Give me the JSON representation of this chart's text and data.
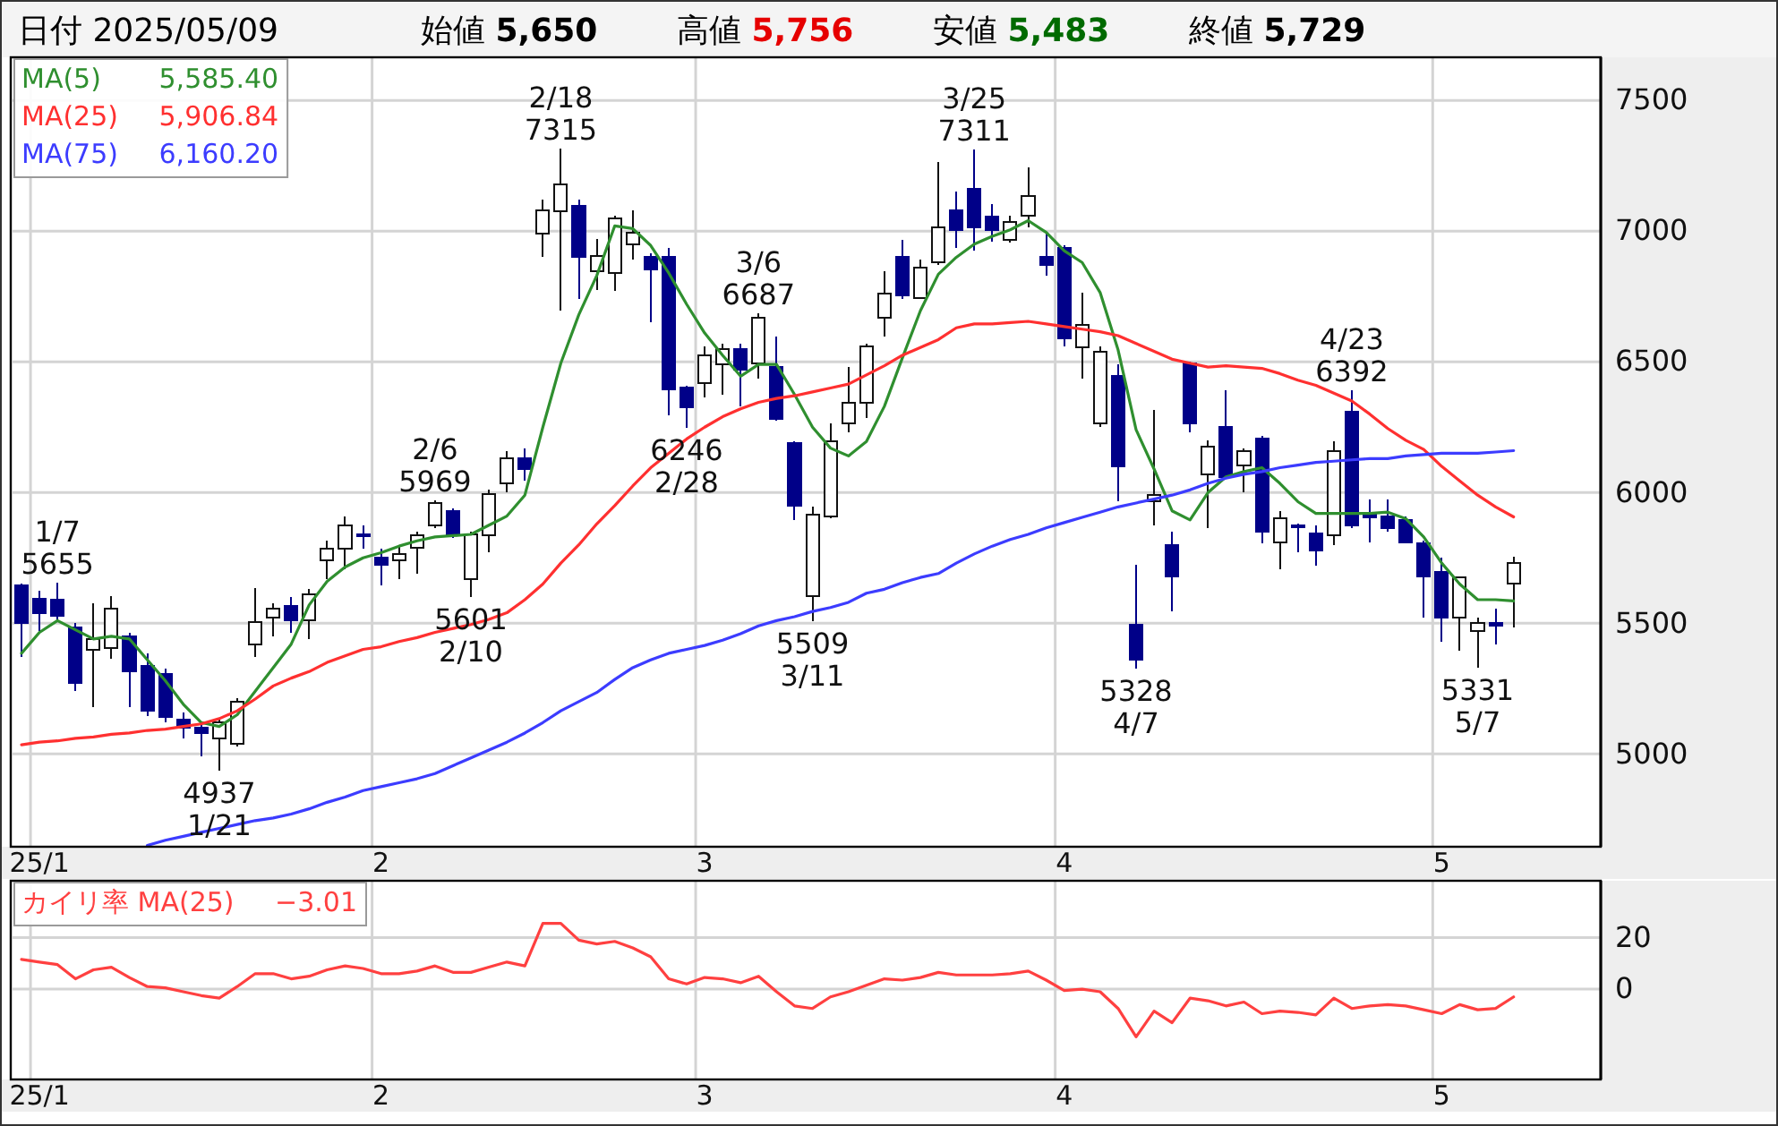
{
  "chart_data": [
    {
      "type": "candlestick",
      "title": "日付 2025/05/09",
      "annotations": [
        "始値 5,650",
        "高値 5,756",
        "安値 5,483",
        "終値 5,729",
        {
          "text": "1/7\n5655",
          "y": 5655
        },
        {
          "text": "4937\n1/21",
          "y": 4937
        },
        {
          "text": "2/6\n5969",
          "y": 5969
        },
        {
          "text": "5601\n2/10",
          "y": 5601
        },
        {
          "text": "2/18\n7315",
          "y": 7315
        },
        {
          "text": "6246\n2/28",
          "y": 6246
        },
        {
          "text": "3/6\n6687",
          "y": 6687
        },
        {
          "text": "5509\n3/11",
          "y": 5509
        },
        {
          "text": "3/25\n7311",
          "y": 7311
        },
        {
          "text": "5328\n4/7",
          "y": 5328
        },
        {
          "text": "4/23\n6392",
          "y": 6392
        },
        {
          "text": "5331\n5/7",
          "y": 5331
        }
      ],
      "categories": [
        null,
        "25/1",
        null,
        null,
        null,
        null,
        null,
        null,
        null,
        null,
        null,
        null,
        null,
        null,
        null,
        null,
        null,
        null,
        null,
        null,
        "2",
        null,
        null,
        null,
        null,
        null,
        null,
        null,
        null,
        null,
        null,
        null,
        null,
        null,
        null,
        null,
        null,
        null,
        "3",
        null,
        null,
        null,
        null,
        null,
        null,
        null,
        null,
        null,
        null,
        null,
        null,
        null,
        null,
        null,
        null,
        null,
        null,
        null,
        "4",
        null,
        null,
        null,
        null,
        null,
        null,
        null,
        null,
        null,
        null,
        null,
        null,
        null,
        null,
        null,
        null,
        null,
        null,
        null,
        null,
        "5",
        null,
        null,
        null,
        null
      ],
      "ohlc": [
        [
          5645,
          5650,
          5370,
          5500
        ],
        [
          5595,
          5625,
          5470,
          5540
        ],
        [
          5590,
          5655,
          5515,
          5530
        ],
        [
          5485,
          5500,
          5240,
          5270
        ],
        [
          5400,
          5575,
          5180,
          5440
        ],
        [
          5405,
          5605,
          5365,
          5555
        ],
        [
          5450,
          5465,
          5180,
          5315
        ],
        [
          5335,
          5385,
          5145,
          5165
        ],
        [
          5305,
          5325,
          5120,
          5140
        ],
        [
          5130,
          5160,
          5060,
          5100
        ],
        [
          5100,
          5120,
          4990,
          5080
        ],
        [
          5060,
          5130,
          4937,
          5120
        ],
        [
          5040,
          5215,
          5030,
          5200
        ],
        [
          5420,
          5635,
          5370,
          5505
        ],
        [
          5520,
          5575,
          5450,
          5555
        ],
        [
          5565,
          5600,
          5465,
          5510
        ],
        [
          5510,
          5630,
          5440,
          5610
        ],
        [
          5740,
          5815,
          5670,
          5785
        ],
        [
          5785,
          5910,
          5705,
          5875
        ],
        [
          5840,
          5875,
          5785,
          5835
        ],
        [
          5750,
          5785,
          5645,
          5725
        ],
        [
          5740,
          5795,
          5670,
          5765
        ],
        [
          5790,
          5850,
          5690,
          5835
        ],
        [
          5875,
          5969,
          5865,
          5960
        ],
        [
          5930,
          5940,
          5825,
          5835
        ],
        [
          5670,
          5850,
          5601,
          5840
        ],
        [
          5835,
          6010,
          5770,
          5995
        ],
        [
          6035,
          6160,
          6000,
          6130
        ],
        [
          6130,
          6170,
          6045,
          6090
        ],
        [
          6990,
          7120,
          6900,
          7080
        ],
        [
          7075,
          7315,
          6695,
          7180
        ],
        [
          7095,
          7120,
          6740,
          6900
        ],
        [
          6845,
          6970,
          6775,
          6905
        ],
        [
          6840,
          7060,
          6770,
          7050
        ],
        [
          6950,
          7080,
          6890,
          6995
        ],
        [
          6900,
          6915,
          6650,
          6855
        ],
        [
          6900,
          6935,
          6295,
          6395
        ],
        [
          6400,
          6410,
          6246,
          6325
        ],
        [
          6420,
          6560,
          6365,
          6525
        ],
        [
          6490,
          6570,
          6375,
          6550
        ],
        [
          6550,
          6570,
          6330,
          6470
        ],
        [
          6495,
          6687,
          6435,
          6670
        ],
        [
          6480,
          6595,
          6275,
          6280
        ],
        [
          6190,
          6195,
          5895,
          5950
        ],
        [
          5605,
          5945,
          5509,
          5915
        ],
        [
          5910,
          6265,
          5900,
          6195
        ],
        [
          6265,
          6480,
          6230,
          6345
        ],
        [
          6345,
          6570,
          6285,
          6560
        ],
        [
          6670,
          6845,
          6595,
          6760
        ],
        [
          6900,
          6965,
          6740,
          6755
        ],
        [
          6745,
          6890,
          6740,
          6860
        ],
        [
          6880,
          7265,
          6870,
          7015
        ],
        [
          7080,
          7150,
          6935,
          7005
        ],
        [
          7160,
          7311,
          6925,
          7015
        ],
        [
          7055,
          7105,
          6960,
          7005
        ],
        [
          6965,
          7060,
          6955,
          7035
        ],
        [
          7060,
          7245,
          7015,
          7135
        ],
        [
          6900,
          6995,
          6830,
          6870
        ],
        [
          6935,
          6945,
          6560,
          6590
        ],
        [
          6555,
          6765,
          6435,
          6640
        ],
        [
          6265,
          6560,
          6250,
          6540
        ],
        [
          6445,
          6490,
          5965,
          6100
        ],
        [
          5495,
          5725,
          5328,
          5360
        ],
        [
          5965,
          6315,
          5875,
          5990
        ],
        [
          5800,
          5850,
          5545,
          5680
        ],
        [
          6495,
          6500,
          6230,
          6265
        ],
        [
          6070,
          6200,
          5865,
          6175
        ],
        [
          6250,
          6390,
          6055,
          6060
        ],
        [
          6105,
          6170,
          6000,
          6160
        ],
        [
          6205,
          6215,
          5805,
          5850
        ],
        [
          5810,
          5930,
          5705,
          5900
        ],
        [
          5875,
          5880,
          5770,
          5870
        ],
        [
          5845,
          5875,
          5720,
          5780
        ],
        [
          5835,
          6195,
          5800,
          6160
        ],
        [
          6310,
          6392,
          5865,
          5875
        ],
        [
          5915,
          5975,
          5810,
          5905
        ],
        [
          5910,
          5975,
          5850,
          5865
        ],
        [
          5895,
          5910,
          5805,
          5810
        ],
        [
          5805,
          5815,
          5520,
          5680
        ],
        [
          5695,
          5750,
          5430,
          5520
        ],
        [
          5520,
          5680,
          5395,
          5675
        ],
        [
          5470,
          5520,
          5331,
          5500
        ],
        [
          5500,
          5555,
          5420,
          5490
        ],
        [
          5650,
          5756,
          5483,
          5729
        ]
      ],
      "series": [
        {
          "type": "line",
          "name": "MA(5) 5,585.40",
          "color": "#2f8f2f",
          "values": [
            5385,
            5465,
            5510,
            5475,
            5440,
            5450,
            5440,
            5360,
            5280,
            5190,
            5120,
            5105,
            5150,
            5240,
            5330,
            5420,
            5570,
            5660,
            5715,
            5750,
            5770,
            5795,
            5815,
            5830,
            5835,
            5840,
            5875,
            5910,
            5990,
            6250,
            6495,
            6680,
            6830,
            7020,
            7010,
            6945,
            6840,
            6720,
            6610,
            6525,
            6445,
            6490,
            6490,
            6375,
            6250,
            6170,
            6140,
            6195,
            6330,
            6515,
            6695,
            6835,
            6900,
            6950,
            6980,
            7005,
            7040,
            6995,
            6925,
            6880,
            6765,
            6545,
            6240,
            6090,
            5930,
            5895,
            6000,
            6060,
            6080,
            6095,
            6035,
            5965,
            5920,
            5920,
            5920,
            5920,
            5925,
            5900,
            5830,
            5730,
            5650,
            5590,
            5590,
            5585.4
          ]
        },
        {
          "type": "line",
          "name": "MA(25) 5,906.84",
          "color": "#ff3030",
          "values": [
            5035,
            5045,
            5050,
            5060,
            5065,
            5075,
            5080,
            5090,
            5095,
            5105,
            5115,
            5135,
            5165,
            5210,
            5260,
            5290,
            5315,
            5350,
            5375,
            5400,
            5410,
            5430,
            5445,
            5465,
            5480,
            5495,
            5515,
            5540,
            5590,
            5650,
            5730,
            5800,
            5880,
            5950,
            6025,
            6095,
            6150,
            6205,
            6250,
            6290,
            6320,
            6345,
            6360,
            6370,
            6385,
            6400,
            6415,
            6450,
            6485,
            6525,
            6555,
            6585,
            6630,
            6645,
            6645,
            6650,
            6655,
            6645,
            6635,
            6625,
            6615,
            6600,
            6570,
            6540,
            6510,
            6495,
            6480,
            6485,
            6480,
            6475,
            6455,
            6430,
            6410,
            6380,
            6350,
            6300,
            6245,
            6200,
            6165,
            6100,
            6045,
            5990,
            5945,
            5906.84
          ]
        },
        {
          "type": "line",
          "name": "MA(75) 6,160.20",
          "color": "#3c3cff",
          "values": [
            null,
            null,
            null,
            null,
            null,
            null,
            null,
            4650,
            4670,
            4685,
            4700,
            4715,
            4730,
            4745,
            4755,
            4770,
            4790,
            4815,
            4835,
            4860,
            4875,
            4890,
            4905,
            4925,
            4955,
            4985,
            5015,
            5045,
            5080,
            5120,
            5165,
            5200,
            5235,
            5285,
            5330,
            5360,
            5385,
            5400,
            5415,
            5435,
            5460,
            5490,
            5510,
            5525,
            5545,
            5560,
            5580,
            5615,
            5630,
            5655,
            5675,
            5690,
            5730,
            5765,
            5795,
            5820,
            5840,
            5865,
            5885,
            5905,
            5925,
            5945,
            5960,
            5975,
            5990,
            6010,
            6035,
            6055,
            6070,
            6080,
            6095,
            6105,
            6115,
            6120,
            6125,
            6130,
            6130,
            6140,
            6145,
            6150,
            6150,
            6150,
            6155,
            6160.2
          ]
        }
      ],
      "ylim": [
        4645,
        7665
      ],
      "yticks": [
        5000,
        5500,
        6000,
        6500,
        7000,
        7500
      ],
      "grid": true
    },
    {
      "type": "line",
      "categories": [
        null,
        "25/1",
        null,
        null,
        null,
        null,
        null,
        null,
        null,
        null,
        null,
        null,
        null,
        null,
        null,
        null,
        null,
        null,
        null,
        null,
        "2",
        null,
        null,
        null,
        null,
        null,
        null,
        null,
        null,
        null,
        null,
        null,
        null,
        null,
        null,
        null,
        null,
        null,
        "3",
        null,
        null,
        null,
        null,
        null,
        null,
        null,
        null,
        null,
        null,
        null,
        null,
        null,
        null,
        null,
        null,
        null,
        null,
        null,
        "4",
        null,
        null,
        null,
        null,
        null,
        null,
        null,
        null,
        null,
        null,
        null,
        null,
        null,
        null,
        null,
        null,
        null,
        null,
        null,
        null,
        "5",
        null,
        null,
        null,
        null
      ],
      "series": [
        {
          "name": "カイリ率 MA(25) −3.01",
          "color": "#ff4040",
          "values": [
            11.5,
            10.5,
            9.5,
            4,
            7.5,
            8.5,
            4.5,
            1,
            0.5,
            -1,
            -2.5,
            -3.5,
            1,
            6,
            6,
            4,
            5,
            7.5,
            9,
            8,
            6,
            6,
            7,
            9,
            6.5,
            6.5,
            8.5,
            10.5,
            9,
            25.5,
            25.5,
            19,
            17.5,
            18.5,
            16,
            12.5,
            4,
            2,
            4.5,
            4,
            2.5,
            5,
            -1,
            -6.5,
            -7.5,
            -3,
            -1,
            1.5,
            4,
            3.5,
            4.5,
            6.5,
            5.5,
            5.5,
            5.5,
            6,
            7,
            3.5,
            -0.5,
            0,
            -1,
            -7.5,
            -18.5,
            -8.5,
            -13,
            -3.5,
            -4.5,
            -6.5,
            -5,
            -9.5,
            -8.5,
            -9,
            -10,
            -3.5,
            -7.5,
            -6.5,
            -6,
            -6.5,
            -8,
            -9.5,
            -6,
            -8,
            -7.5,
            -3.01
          ]
        }
      ],
      "ylim": [
        -35,
        42
      ],
      "yticks": [
        0,
        20
      ],
      "grid": true
    }
  ]
}
